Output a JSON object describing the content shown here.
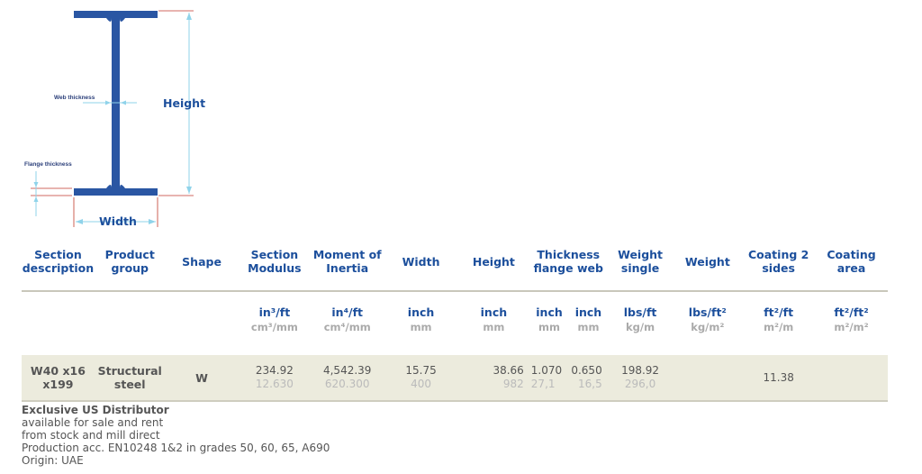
{
  "diagram": {
    "web_thickness_label": "Web thickness",
    "flange_thickness_label": "Flange thickness",
    "height_label": "Height",
    "width_label": "Width"
  },
  "table": {
    "headers": {
      "section_description": [
        "Section",
        "description"
      ],
      "product_group": [
        "Product",
        "group"
      ],
      "shape": "Shape",
      "section_modulus": [
        "Section",
        "Modulus"
      ],
      "moment_of_inertia": [
        "Moment of",
        "Inertia"
      ],
      "width": "Width",
      "height": "Height",
      "thickness": [
        "Thickness",
        "flange web"
      ],
      "weight_single": [
        "Weight",
        "single"
      ],
      "weight": "Weight",
      "coating_2_sides": [
        "Coating 2",
        "sides"
      ],
      "coating_area": [
        "Coating",
        "area"
      ]
    },
    "units": {
      "section_modulus": {
        "imperial": "in³/ft",
        "metric": "cm³/mm"
      },
      "moment_of_inertia": {
        "imperial": "in⁴/ft",
        "metric": "cm⁴/mm"
      },
      "width": {
        "imperial": "inch",
        "metric": "mm"
      },
      "height": {
        "imperial": "inch",
        "metric": "mm"
      },
      "flange": {
        "imperial": "inch",
        "metric": "mm"
      },
      "web": {
        "imperial": "inch",
        "metric": "mm"
      },
      "weight_single": {
        "imperial": "lbs/ft",
        "metric": "kg/m"
      },
      "weight": {
        "imperial": "lbs/ft²",
        "metric": "kg/m²"
      },
      "coating_2_sides": {
        "imperial": "ft²/ft",
        "metric": "m²/m"
      },
      "coating_area": {
        "imperial": "ft²/ft²",
        "metric": "m²/m²"
      }
    },
    "row": {
      "section_description": [
        "W40 x16",
        "x199"
      ],
      "product_group": [
        "Structural",
        "steel"
      ],
      "shape": "W",
      "section_modulus": {
        "imperial": "234.92",
        "metric": "12.630"
      },
      "moment_of_inertia": {
        "imperial": "4,542.39",
        "metric": "620.300"
      },
      "width": {
        "imperial": "15.75",
        "metric": "400"
      },
      "height": {
        "imperial": "38.66",
        "metric": "982"
      },
      "flange": {
        "imperial": "1.070",
        "metric": "27,1"
      },
      "web": {
        "imperial": "0.650",
        "metric": "16,5"
      },
      "weight_single": {
        "imperial": "198.92",
        "metric": "296,0"
      },
      "coating_2_sides": "11.38"
    }
  },
  "notes": {
    "title": "Exclusive US Distributor",
    "lines": [
      "available for sale and rent",
      "from stock and mill direct",
      "Production acc. EN10248 1&2 in grades 50, 60, 65, A690",
      "Origin: UAE"
    ]
  },
  "colors": {
    "beam_blue": "#2a56a3",
    "header_blue": "#1c4f9c",
    "row_background": "#ecebdd",
    "dimension_red": "#c0392b",
    "dimension_cyan": "#8fd3ea"
  }
}
